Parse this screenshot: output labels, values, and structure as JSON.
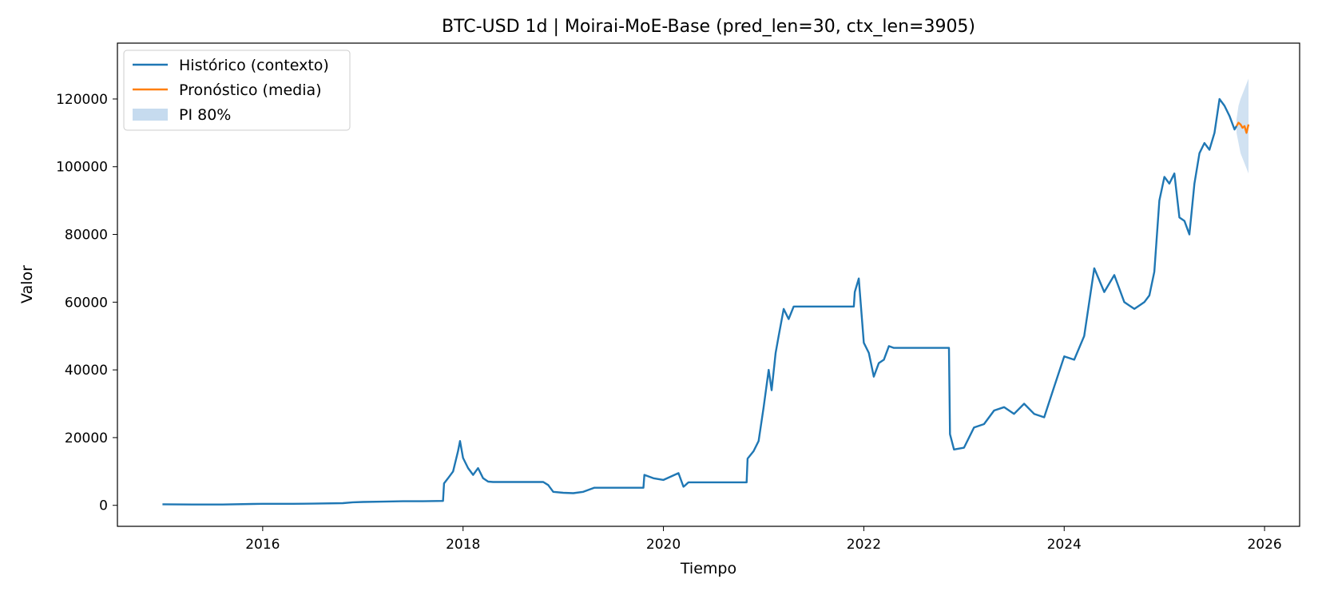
{
  "chart_data": {
    "type": "line",
    "title": "BTC-USD 1d | Moirai-MoE-Base (pred_len=30, ctx_len=3905)",
    "xlabel": "Tiempo",
    "ylabel": "Valor",
    "xlim": [
      2014.55,
      2026.35
    ],
    "ylim": [
      -6200,
      136500
    ],
    "x_ticks": [
      2016,
      2018,
      2020,
      2022,
      2024,
      2026
    ],
    "x_tick_labels": [
      "2016",
      "2018",
      "2020",
      "2022",
      "2024",
      "2026"
    ],
    "y_ticks": [
      0,
      20000,
      40000,
      60000,
      80000,
      100000,
      120000
    ],
    "y_tick_labels": [
      "0",
      "20000",
      "40000",
      "60000",
      "80000",
      "100000",
      "120000"
    ],
    "grid": false,
    "legend_position": "top-left",
    "legend": [
      "Histórico (contexto)",
      "Pronóstico (media)",
      "PI 80%"
    ],
    "colors": {
      "historical": "#1f77b4",
      "forecast": "#ff7f0e",
      "interval": "#c6dbef"
    },
    "series": [
      {
        "name": "Histórico (contexto)",
        "x": [
          2015.0,
          2015.3,
          2015.6,
          2015.9,
          2016.0,
          2016.3,
          2016.5,
          2016.8,
          2016.9,
          2017.0,
          2017.2,
          2017.4,
          2017.6,
          2017.8,
          2017.81,
          2017.85,
          2017.9,
          2017.95,
          2017.97,
          2018.0,
          2018.05,
          2018.1,
          2018.15,
          2018.2,
          2018.25,
          2018.3,
          2018.8,
          2018.85,
          2018.9,
          2019.0,
          2019.1,
          2019.2,
          2019.3,
          2019.31,
          2019.8,
          2019.81,
          2019.9,
          2020.0,
          2020.15,
          2020.2,
          2020.22,
          2020.25,
          2020.3,
          2020.4,
          2020.83,
          2020.84,
          2020.9,
          2020.95,
          2021.0,
          2021.05,
          2021.08,
          2021.12,
          2021.15,
          2021.2,
          2021.25,
          2021.3,
          2021.9,
          2021.91,
          2021.95,
          2022.0,
          2022.05,
          2022.1,
          2022.15,
          2022.2,
          2022.25,
          2022.3,
          2022.85,
          2022.86,
          2022.9,
          2023.0,
          2023.1,
          2023.2,
          2023.3,
          2023.4,
          2023.5,
          2023.6,
          2023.7,
          2023.8,
          2023.9,
          2024.0,
          2024.1,
          2024.2,
          2024.3,
          2024.4,
          2024.5,
          2024.6,
          2024.7,
          2024.8,
          2024.85,
          2024.9,
          2024.95,
          2025.0,
          2025.05,
          2025.1,
          2025.15,
          2025.2,
          2025.25,
          2025.3,
          2025.35,
          2025.4,
          2025.45,
          2025.5,
          2025.55,
          2025.6,
          2025.65,
          2025.7,
          2025.72
        ],
        "values": [
          300,
          250,
          250,
          400,
          450,
          450,
          500,
          650,
          900,
          1000,
          1100,
          1200,
          1200,
          1300,
          6500,
          8000,
          10000,
          16000,
          19000,
          14000,
          11000,
          9000,
          11000,
          8000,
          7000,
          6900,
          6900,
          6000,
          4000,
          3700,
          3600,
          4000,
          5100,
          5200,
          5200,
          9000,
          8000,
          7500,
          9500,
          5500,
          6000,
          6800,
          6800,
          6800,
          6800,
          13800,
          16000,
          19000,
          29000,
          40000,
          34000,
          45000,
          50000,
          58000,
          55000,
          58700,
          58700,
          63000,
          67000,
          48000,
          45000,
          38000,
          42000,
          43000,
          47000,
          46500,
          46500,
          21000,
          16500,
          17000,
          23000,
          24000,
          28000,
          29000,
          27000,
          30000,
          27000,
          26000,
          35000,
          44000,
          43000,
          50000,
          70000,
          63000,
          68000,
          60000,
          58000,
          60000,
          62000,
          69000,
          90000,
          97000,
          95000,
          98000,
          85000,
          84000,
          80000,
          95000,
          104000,
          107000,
          105000,
          110000,
          120000,
          118000,
          115000,
          111000,
          112000
        ]
      },
      {
        "name": "Pronóstico (media)",
        "x": [
          2025.72,
          2025.74,
          2025.76,
          2025.78,
          2025.8,
          2025.82,
          2025.84
        ],
        "values": [
          112000,
          113000,
          112500,
          111500,
          112000,
          110000,
          112500
        ]
      }
    ],
    "interval": {
      "name": "PI 80%",
      "x": [
        2025.72,
        2025.74,
        2025.76,
        2025.78,
        2025.8,
        2025.82,
        2025.84
      ],
      "lower": [
        110000,
        107000,
        104000,
        102500,
        101000,
        99500,
        98000
      ],
      "upper": [
        114000,
        118000,
        120000,
        121500,
        123000,
        124500,
        126000
      ]
    }
  }
}
